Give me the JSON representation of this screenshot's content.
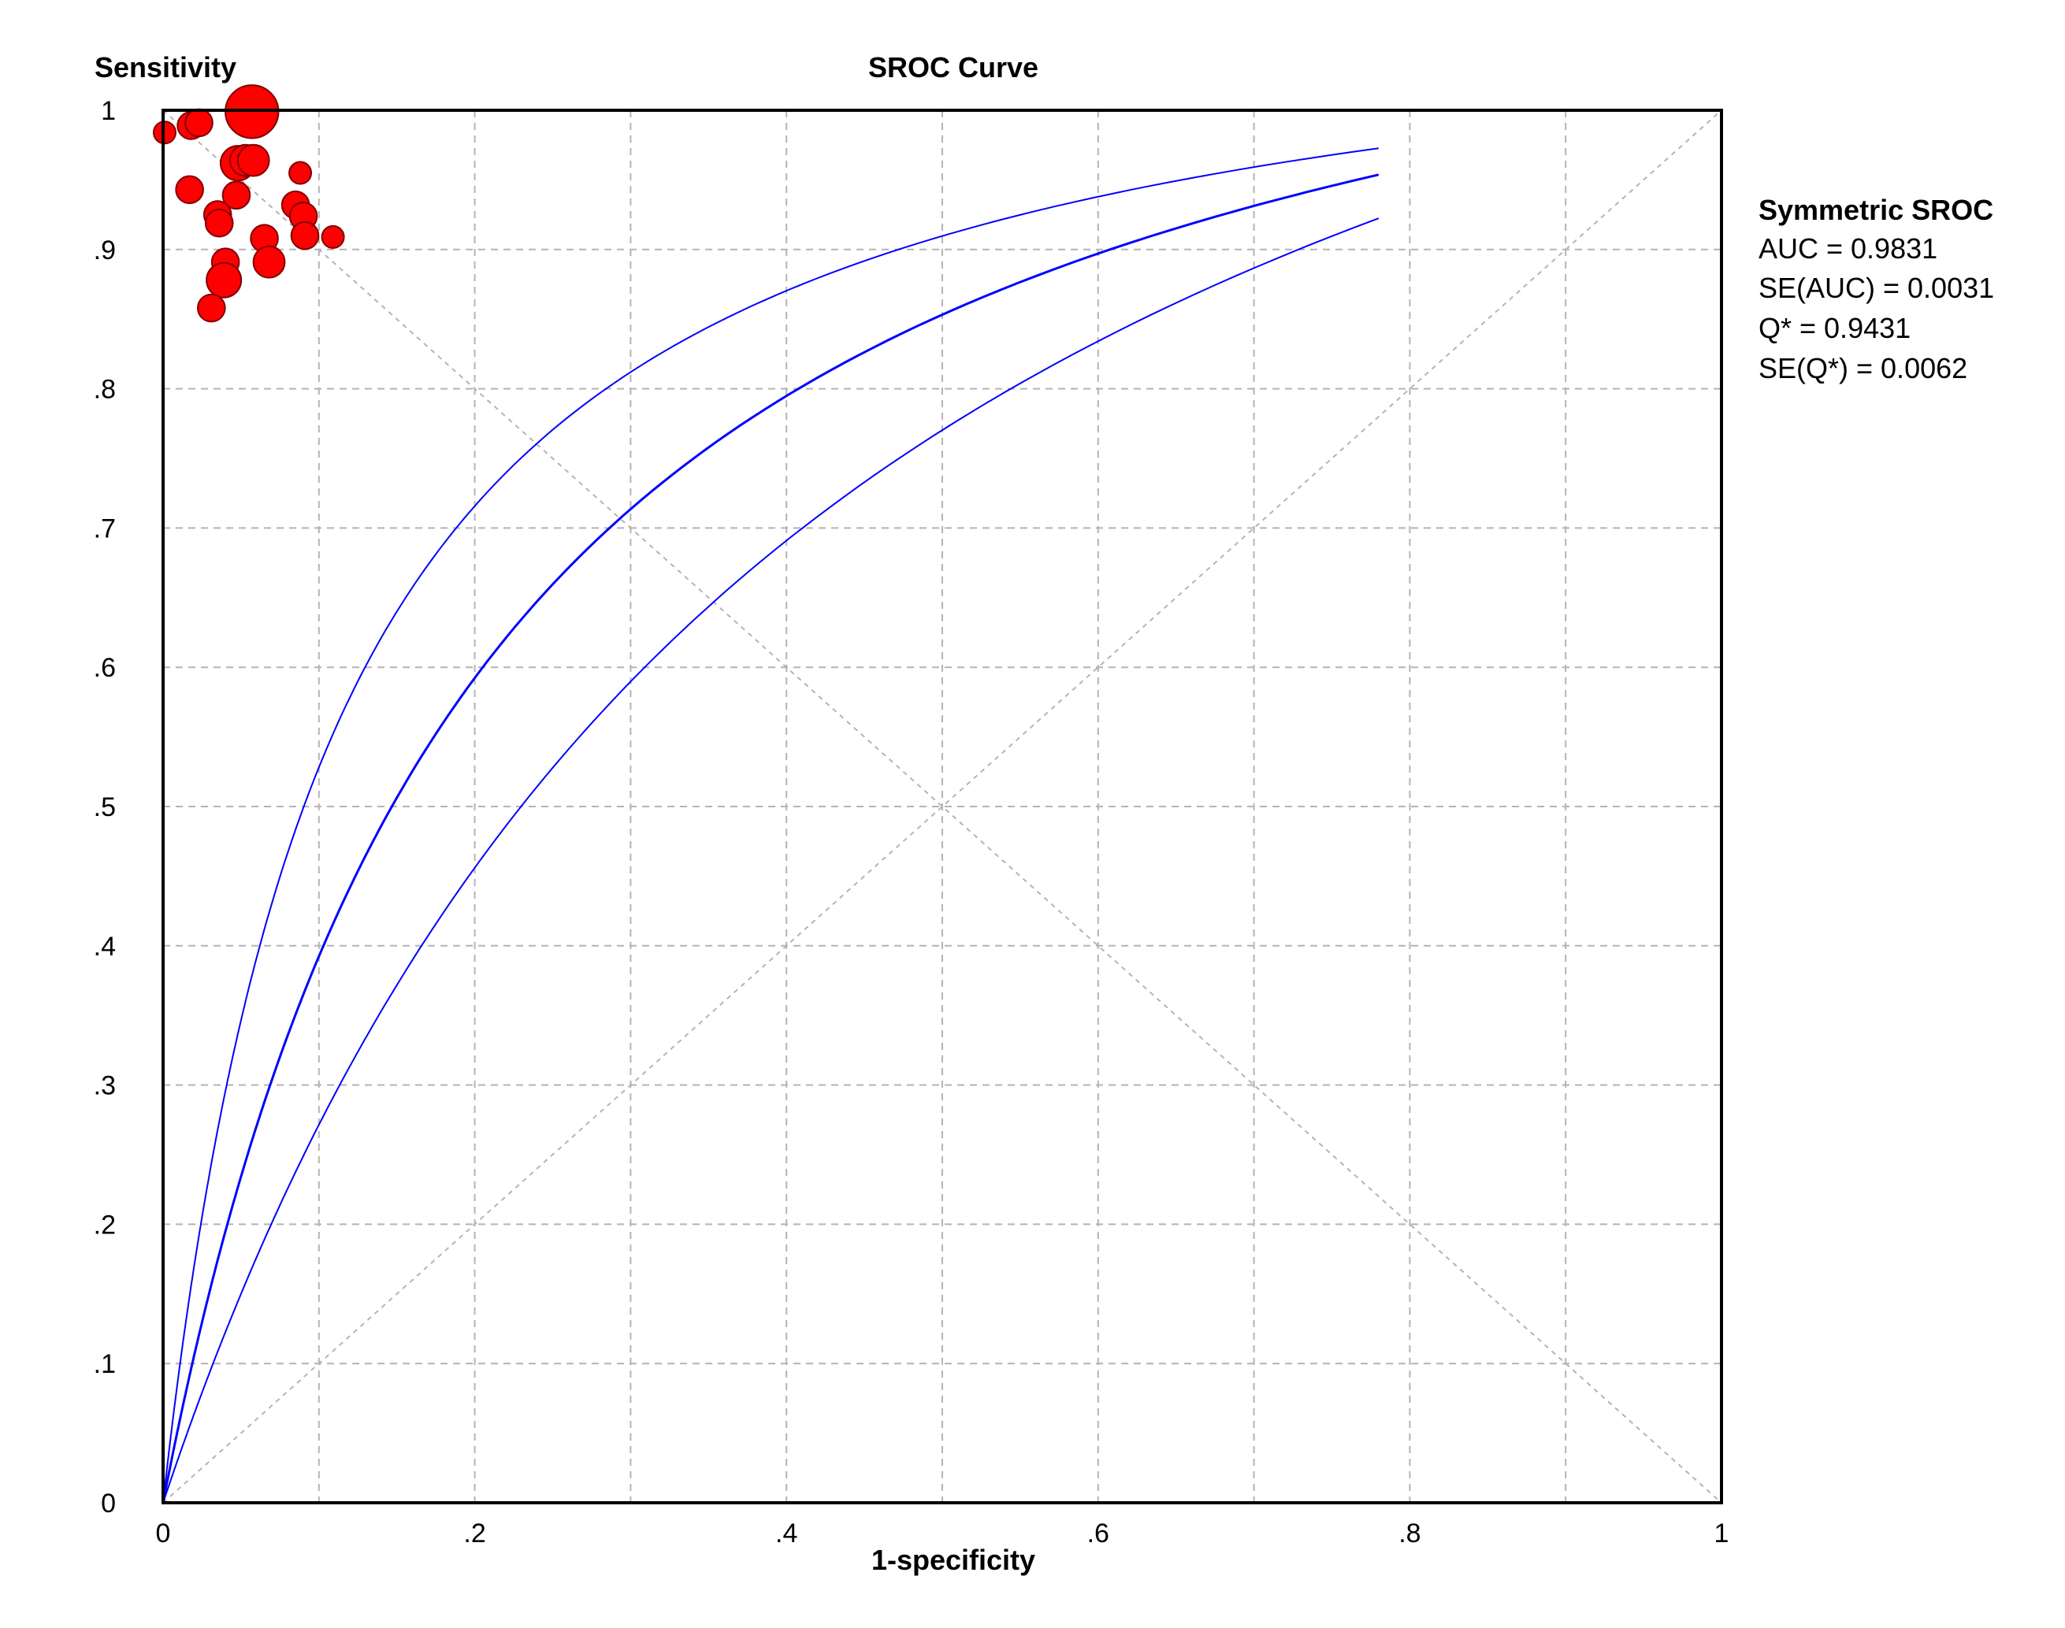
{
  "chart_data": {
    "type": "scatter",
    "title": "SROC Curve",
    "xlabel": "1-specificity",
    "ylabel": "Sensitivity",
    "xlim": [
      0,
      1
    ],
    "ylim": [
      0,
      1
    ],
    "x_ticks": [
      {
        "value": 0,
        "label": "0"
      },
      {
        "value": 0.2,
        "label": ".2"
      },
      {
        "value": 0.4,
        "label": ".4"
      },
      {
        "value": 0.6,
        "label": ".6"
      },
      {
        "value": 0.8,
        "label": ".8"
      },
      {
        "value": 1,
        "label": "1"
      }
    ],
    "y_ticks": [
      {
        "value": 0,
        "label": "0"
      },
      {
        "value": 0.1,
        "label": ".1"
      },
      {
        "value": 0.2,
        "label": ".2"
      },
      {
        "value": 0.3,
        "label": ".3"
      },
      {
        "value": 0.4,
        "label": ".4"
      },
      {
        "value": 0.5,
        "label": ".5"
      },
      {
        "value": 0.6,
        "label": ".6"
      },
      {
        "value": 0.7,
        "label": ".7"
      },
      {
        "value": 0.8,
        "label": ".8"
      },
      {
        "value": 0.9,
        "label": ".9"
      },
      {
        "value": 1,
        "label": "1"
      }
    ],
    "grid": true,
    "grid_step": 0.1,
    "reference_lines": [
      "chance diagonal",
      "Q* anti-diagonal"
    ],
    "sroc": {
      "auc_log": 1.76,
      "band_offsets_log": [
        -0.55,
        0.55
      ],
      "x_range": [
        0.0002,
        0.78
      ]
    },
    "studies": [
      {
        "x": 0.001,
        "y": 0.984,
        "weight": 1
      },
      {
        "x": 0.018,
        "y": 0.989,
        "weight": 2
      },
      {
        "x": 0.023,
        "y": 0.991,
        "weight": 2
      },
      {
        "x": 0.057,
        "y": 0.999,
        "weight": 12
      },
      {
        "x": 0.048,
        "y": 0.962,
        "weight": 4
      },
      {
        "x": 0.053,
        "y": 0.964,
        "weight": 3
      },
      {
        "x": 0.058,
        "y": 0.964,
        "weight": 3
      },
      {
        "x": 0.017,
        "y": 0.943,
        "weight": 2
      },
      {
        "x": 0.047,
        "y": 0.939,
        "weight": 2
      },
      {
        "x": 0.088,
        "y": 0.955,
        "weight": 1
      },
      {
        "x": 0.035,
        "y": 0.925,
        "weight": 2
      },
      {
        "x": 0.036,
        "y": 0.919,
        "weight": 2
      },
      {
        "x": 0.085,
        "y": 0.932,
        "weight": 2
      },
      {
        "x": 0.09,
        "y": 0.924,
        "weight": 2
      },
      {
        "x": 0.065,
        "y": 0.908,
        "weight": 2
      },
      {
        "x": 0.091,
        "y": 0.91,
        "weight": 2
      },
      {
        "x": 0.109,
        "y": 0.909,
        "weight": 1
      },
      {
        "x": 0.04,
        "y": 0.891,
        "weight": 2
      },
      {
        "x": 0.068,
        "y": 0.891,
        "weight": 3
      },
      {
        "x": 0.039,
        "y": 0.878,
        "weight": 4
      },
      {
        "x": 0.031,
        "y": 0.858,
        "weight": 2
      }
    ],
    "colors": {
      "curve": "#0000ff",
      "points": "#ff0000",
      "point_outline": "#800000",
      "grid": "#b4b4b4",
      "frame": "#000000"
    },
    "stats_panel": {
      "heading": "Symmetric SROC",
      "lines": [
        "AUC = 0.9831",
        "SE(AUC) = 0.0031",
        "Q* = 0.9431",
        "SE(Q*) = 0.0062"
      ]
    }
  }
}
